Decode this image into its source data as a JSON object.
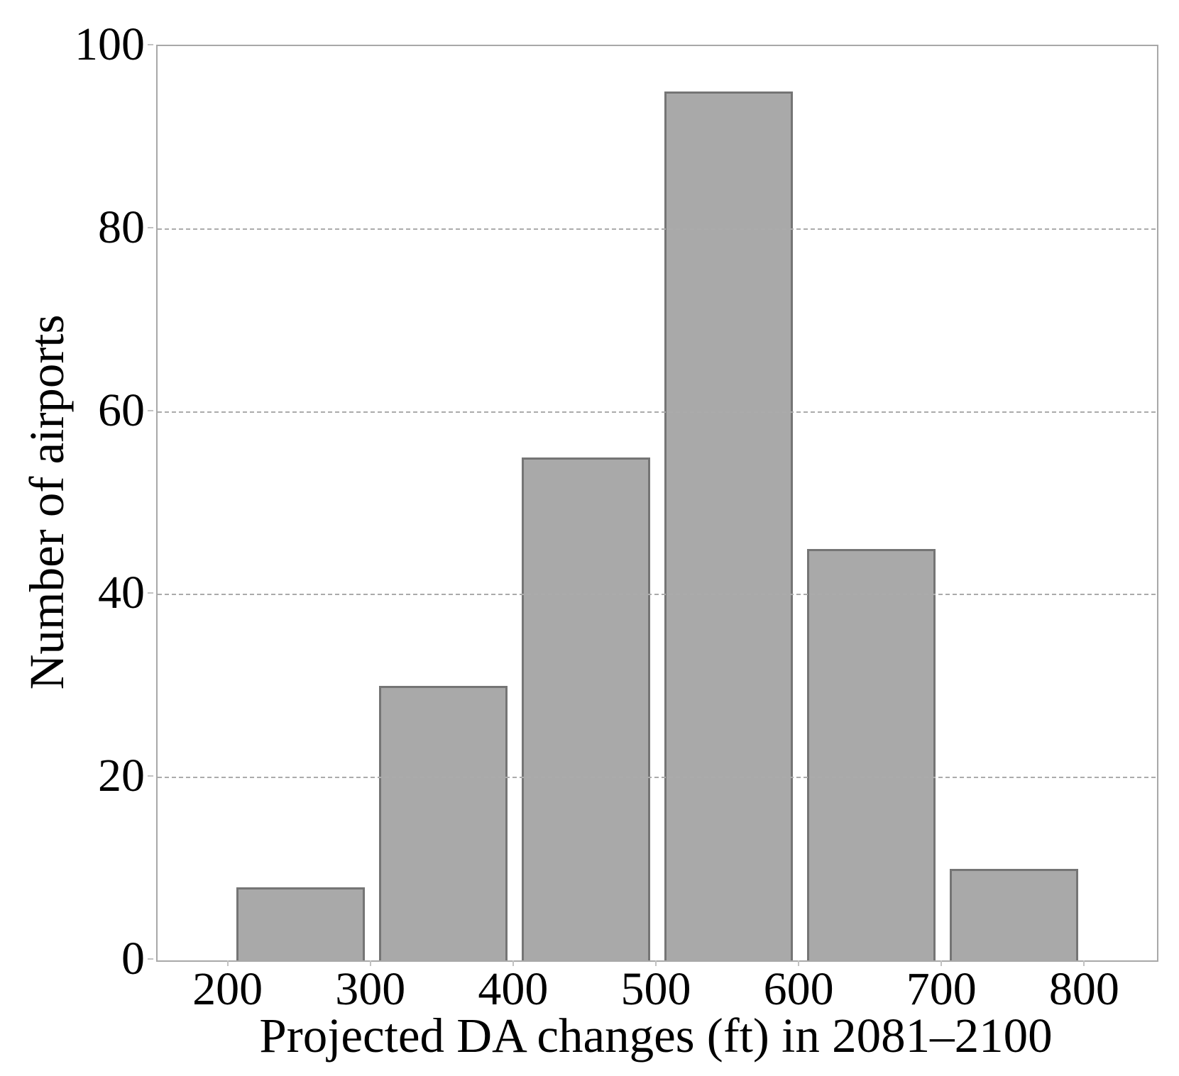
{
  "chart_data": {
    "type": "bar",
    "subtype": "histogram",
    "title": "",
    "xlabel": "Projected DA changes (ft) in 2081–2100",
    "ylabel": "Number of airports",
    "bins": [
      [
        200,
        300
      ],
      [
        300,
        400
      ],
      [
        400,
        500
      ],
      [
        500,
        600
      ],
      [
        600,
        700
      ],
      [
        700,
        800
      ]
    ],
    "bin_centers": [
      250,
      350,
      450,
      550,
      650,
      750
    ],
    "values": [
      8,
      30,
      55,
      95,
      45,
      10
    ],
    "bar_width_data_units": 90,
    "xlim": [
      150,
      850
    ],
    "ylim": [
      0,
      100
    ],
    "xticks": [
      200,
      300,
      400,
      500,
      600,
      700,
      800
    ],
    "yticks": [
      0,
      20,
      40,
      60,
      80,
      100
    ],
    "gridlines": {
      "y_values": [
        20,
        40,
        60,
        80
      ],
      "style": "dashed",
      "position": "above-bars"
    },
    "legend": null,
    "grid_on": true,
    "colors": {
      "bar_fill": "#a9a9a9",
      "bar_edge": "#757575",
      "spine": "#a8a8a8",
      "grid": "#ababab",
      "tick_mark": "#c2c2c2",
      "text": "#000000",
      "background": "#ffffff"
    }
  }
}
